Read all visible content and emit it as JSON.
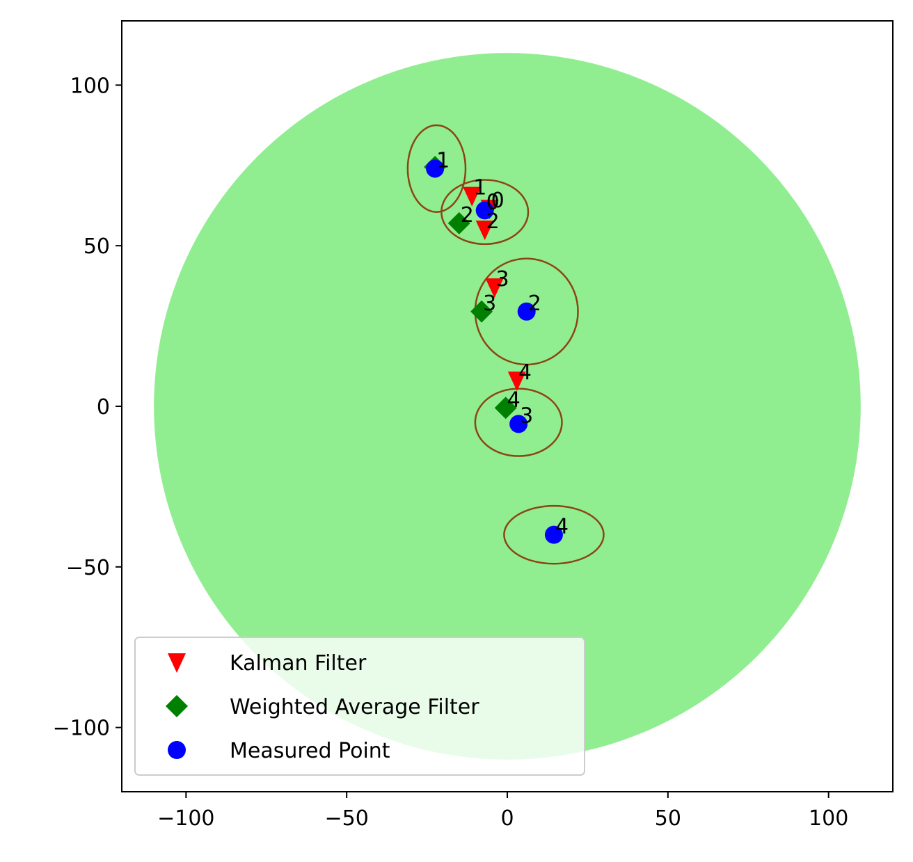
{
  "chart_data": {
    "type": "scatter",
    "title": "",
    "xlabel": "",
    "ylabel": "",
    "xlim": [
      -120,
      120
    ],
    "ylim": [
      -120,
      120
    ],
    "grid": false,
    "legend_position": "lower-left",
    "coverage_circle": {
      "center": [
        0,
        0
      ],
      "radius": 110,
      "color": "#90ee90"
    },
    "uncertainty_ellipses": {
      "color": "#8b4513",
      "items": [
        {
          "center": [
            -22,
            74
          ],
          "rx": 9,
          "ry": 13.5
        },
        {
          "center": [
            -7,
            60.5
          ],
          "rx": 13.5,
          "ry": 10
        },
        {
          "center": [
            6,
            29.5
          ],
          "rx": 16,
          "ry": 16.5
        },
        {
          "center": [
            3.5,
            -5
          ],
          "rx": 13.5,
          "ry": 10.5
        },
        {
          "center": [
            14.5,
            -40
          ],
          "rx": 15.5,
          "ry": 9
        }
      ]
    },
    "series": [
      {
        "name": "Kalman Filter",
        "marker": "triangle-down",
        "color": "#ff0000",
        "points": [
          {
            "x": -5.5,
            "y": 61.5,
            "label": "0"
          },
          {
            "x": -11,
            "y": 65.5,
            "label": "1"
          },
          {
            "x": -7,
            "y": 55,
            "label": "2"
          },
          {
            "x": -4,
            "y": 37,
            "label": "3"
          },
          {
            "x": 3,
            "y": 8,
            "label": "4"
          }
        ]
      },
      {
        "name": "Weighted Average Filter",
        "marker": "diamond",
        "color": "#008000",
        "points": [
          {
            "x": -22.5,
            "y": 74.5,
            "label": ""
          },
          {
            "x": -15,
            "y": 57,
            "label": "2"
          },
          {
            "x": -8,
            "y": 29.5,
            "label": "3"
          },
          {
            "x": -0.5,
            "y": -0.5,
            "label": "4"
          }
        ]
      },
      {
        "name": "Measured Point",
        "marker": "circle",
        "color": "#0000ff",
        "points": [
          {
            "x": -7,
            "y": 61,
            "label": "0"
          },
          {
            "x": -22.5,
            "y": 74,
            "label": "1"
          },
          {
            "x": 6,
            "y": 29.5,
            "label": "2"
          },
          {
            "x": 3.5,
            "y": -5.5,
            "label": "3"
          },
          {
            "x": 14.5,
            "y": -40,
            "label": "4"
          }
        ]
      }
    ],
    "x_ticks": [
      {
        "value": -100,
        "label": "−100"
      },
      {
        "value": -50,
        "label": "−50"
      },
      {
        "value": 0,
        "label": "0"
      },
      {
        "value": 50,
        "label": "50"
      },
      {
        "value": 100,
        "label": "100"
      }
    ],
    "y_ticks": [
      {
        "value": 100,
        "label": "100"
      },
      {
        "value": 50,
        "label": "50"
      },
      {
        "value": 0,
        "label": "0"
      },
      {
        "value": -50,
        "label": "−50"
      },
      {
        "value": -100,
        "label": "−100"
      }
    ]
  }
}
